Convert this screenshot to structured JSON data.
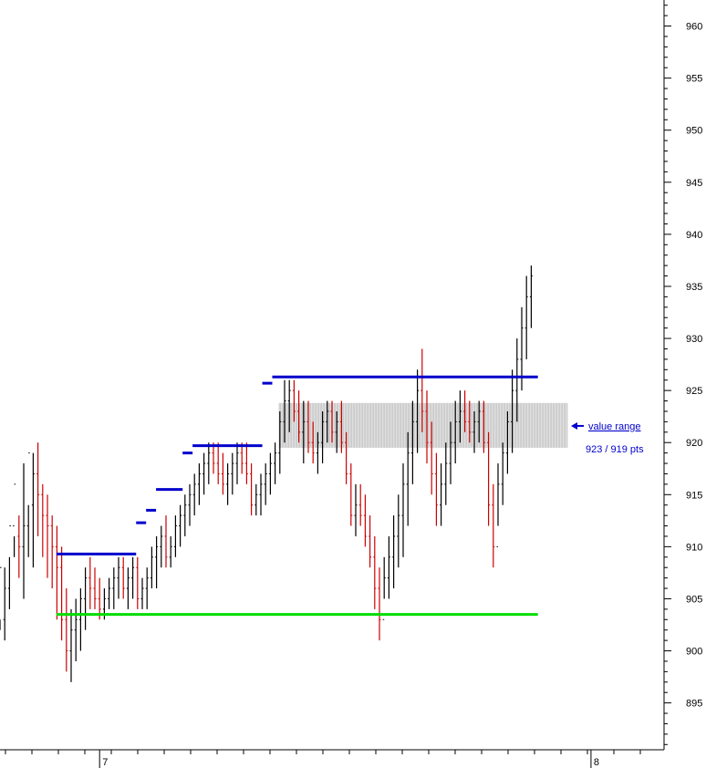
{
  "chart_data": {
    "type": "bar",
    "subtype": "ohlc-range-bars",
    "title": "",
    "xlabel": "",
    "ylabel": "",
    "ylim": [
      890.5,
      962.5
    ],
    "y_ticks": [
      895,
      900,
      905,
      910,
      915,
      920,
      925,
      930,
      935,
      940,
      945,
      950,
      955,
      960
    ],
    "x_tick_labels": [
      {
        "label": "7",
        "x": 0.15
      },
      {
        "label": "8",
        "x": 0.89
      }
    ],
    "colors": {
      "up_bar": "#000000",
      "down_bar": "#cc0000",
      "resistance_line": "#0000cc",
      "support_line": "#00dd00",
      "value_area_fill": "#cccccc",
      "annotation": "#0000cc"
    },
    "series": [
      {
        "values": [
          [
            904,
            902,
            903,
            908
          ],
          [
            903,
            901,
            908,
            906
          ],
          [
            906,
            904,
            909,
            912
          ],
          [
            912,
            909,
            911,
            916
          ],
          [
            911,
            907,
            913,
            910
          ],
          [
            910,
            905,
            918,
            912
          ],
          [
            912,
            909,
            914,
            919
          ],
          [
            914,
            908,
            919,
            917
          ],
          [
            917,
            911,
            920,
            915
          ],
          [
            915,
            909,
            916,
            913
          ],
          [
            913,
            907,
            915,
            912
          ],
          [
            912,
            906,
            913,
            910
          ],
          [
            910,
            903,
            912,
            908
          ],
          [
            908,
            901,
            910,
            903
          ],
          [
            903,
            898,
            906,
            900
          ],
          [
            900,
            897,
            904,
            902
          ],
          [
            902,
            899,
            905,
            903
          ],
          [
            903,
            900,
            906,
            905
          ],
          [
            905,
            902,
            908,
            907
          ],
          [
            907,
            904,
            909,
            906
          ],
          [
            906,
            904,
            908,
            905
          ],
          [
            905,
            903,
            907,
            904
          ],
          [
            904,
            903,
            906,
            905
          ],
          [
            905,
            904,
            907,
            906
          ],
          [
            906,
            904,
            908,
            907
          ],
          [
            907,
            905,
            909,
            908
          ],
          [
            908,
            905,
            909,
            906
          ],
          [
            906,
            904,
            908,
            907
          ],
          [
            907,
            905,
            909,
            908
          ],
          [
            908,
            904,
            909,
            905
          ],
          [
            905,
            904,
            907,
            906
          ],
          [
            906,
            904,
            908,
            907
          ],
          [
            907,
            906,
            910,
            909
          ],
          [
            909,
            906,
            911,
            910
          ],
          [
            910,
            908,
            912,
            911
          ],
          [
            911,
            908,
            913,
            909
          ],
          [
            909,
            908,
            911,
            910
          ],
          [
            910,
            909,
            913,
            912
          ],
          [
            912,
            910,
            914,
            913
          ],
          [
            913,
            911,
            915,
            914
          ],
          [
            914,
            912,
            916,
            915
          ],
          [
            915,
            913,
            917,
            916
          ],
          [
            916,
            914,
            918,
            917
          ],
          [
            917,
            915,
            919,
            918
          ],
          [
            918,
            916,
            920,
            919
          ],
          [
            919,
            917,
            920,
            918
          ],
          [
            918,
            916,
            920,
            917
          ],
          [
            917,
            915,
            919,
            916
          ],
          [
            916,
            914,
            918,
            917
          ],
          [
            917,
            915,
            919,
            918
          ],
          [
            918,
            916,
            920,
            919
          ],
          [
            919,
            917,
            920,
            918
          ],
          [
            918,
            916,
            920,
            917
          ],
          [
            917,
            913,
            918,
            914
          ],
          [
            914,
            913,
            916,
            915
          ],
          [
            915,
            913,
            917,
            916
          ],
          [
            916,
            914,
            918,
            917
          ],
          [
            917,
            915,
            919,
            918
          ],
          [
            918,
            916,
            920,
            919
          ],
          [
            919,
            917,
            923,
            922
          ],
          [
            922,
            920,
            926,
            924
          ],
          [
            924,
            921,
            926,
            925
          ],
          [
            925,
            922,
            926,
            923
          ],
          [
            923,
            920,
            925,
            921
          ],
          [
            921,
            918,
            924,
            922
          ],
          [
            922,
            919,
            924,
            920
          ],
          [
            920,
            918,
            922,
            919
          ],
          [
            919,
            917,
            921,
            920
          ],
          [
            920,
            918,
            923,
            922
          ],
          [
            922,
            920,
            924,
            923
          ],
          [
            923,
            920,
            924,
            921
          ],
          [
            921,
            919,
            923,
            922
          ],
          [
            922,
            919,
            924,
            920
          ],
          [
            920,
            916,
            921,
            917
          ],
          [
            917,
            912,
            918,
            913
          ],
          [
            913,
            911,
            916,
            914
          ],
          [
            914,
            912,
            916,
            913
          ],
          [
            913,
            910,
            915,
            911
          ],
          [
            911,
            908,
            913,
            909
          ],
          [
            909,
            904,
            911,
            906
          ],
          [
            906,
            901,
            908,
            903
          ],
          [
            903,
            905,
            909,
            907
          ],
          [
            907,
            905,
            911,
            909
          ],
          [
            909,
            906,
            913,
            911
          ],
          [
            911,
            908,
            915,
            913
          ],
          [
            913,
            909,
            918,
            916
          ],
          [
            916,
            912,
            921,
            919
          ],
          [
            919,
            916,
            924,
            922
          ],
          [
            922,
            919,
            927,
            925
          ],
          [
            925,
            921,
            929,
            923
          ],
          [
            923,
            918,
            925,
            920
          ],
          [
            920,
            915,
            922,
            917
          ],
          [
            917,
            912,
            919,
            914
          ],
          [
            914,
            912,
            918,
            916
          ],
          [
            916,
            914,
            920,
            918
          ],
          [
            918,
            916,
            922,
            920
          ],
          [
            920,
            918,
            924,
            922
          ],
          [
            922,
            920,
            925,
            923
          ],
          [
            923,
            921,
            925,
            922
          ],
          [
            922,
            920,
            924,
            921
          ],
          [
            921,
            919,
            923,
            922
          ],
          [
            922,
            920,
            924,
            923
          ],
          [
            923,
            919,
            924,
            920
          ],
          [
            920,
            912,
            921,
            914
          ],
          [
            914,
            908,
            916,
            910
          ],
          [
            910,
            912,
            918,
            916
          ],
          [
            916,
            914,
            920,
            919
          ],
          [
            919,
            917,
            923,
            922
          ],
          [
            922,
            919,
            927,
            925
          ],
          [
            925,
            922,
            930,
            928
          ],
          [
            928,
            925,
            933,
            931
          ],
          [
            931,
            928,
            936,
            934
          ],
          [
            934,
            931,
            937,
            936
          ]
        ]
      }
    ],
    "value_area": {
      "high": 923.8,
      "low": 919.5
    },
    "resistance_steps": [
      {
        "x0": 0.085,
        "x1": 0.205,
        "y": 909.3
      },
      {
        "x0": 0.205,
        "x1": 0.22,
        "y": 912.3
      },
      {
        "x0": 0.22,
        "x1": 0.235,
        "y": 913.5
      },
      {
        "x0": 0.235,
        "x1": 0.275,
        "y": 915.5
      },
      {
        "x0": 0.275,
        "x1": 0.29,
        "y": 919.0
      },
      {
        "x0": 0.29,
        "x1": 0.395,
        "y": 919.7
      },
      {
        "x0": 0.395,
        "x1": 0.41,
        "y": 925.7
      },
      {
        "x0": 0.41,
        "x1": 0.81,
        "y": 926.3
      }
    ],
    "support_line": {
      "x0": 0.085,
      "x1": 0.81,
      "y": 903.5
    },
    "annotations": [
      {
        "id": "value-range",
        "text": "value range"
      },
      {
        "id": "pts",
        "text": "923 / 919 pts"
      }
    ]
  }
}
